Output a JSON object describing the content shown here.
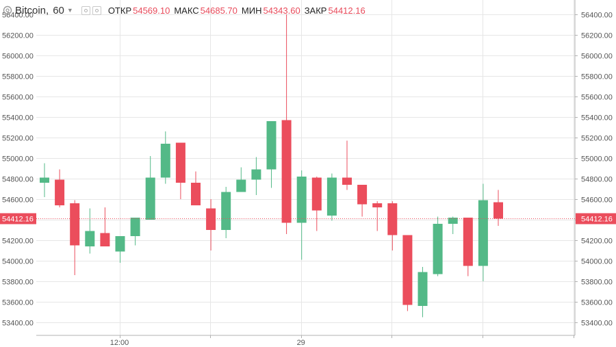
{
  "header": {
    "symbol": "Bitcoin,",
    "timeframe": "60",
    "ohlc": [
      {
        "label": "ОТКР",
        "value": "54569.10"
      },
      {
        "label": "МАКС",
        "value": "54685.70"
      },
      {
        "label": "МИН",
        "value": "54343.60"
      },
      {
        "label": "ЗАКР",
        "value": "54412.16"
      }
    ]
  },
  "colors": {
    "up": "#53b987",
    "down": "#eb4d5c",
    "grid": "#e6e6e6",
    "axis_text": "#555555",
    "value_color": "#e84a5a"
  },
  "chart_data": {
    "type": "candlestick",
    "ylim": [
      53300,
      56500
    ],
    "y_ticks": [
      53400,
      53600,
      53800,
      54000,
      54200,
      54400,
      54600,
      54800,
      55000,
      55200,
      55400,
      55600,
      55800,
      56000,
      56200,
      56400
    ],
    "x_tick_labels": [
      {
        "index": 5,
        "label": "12:00"
      },
      {
        "index": 17,
        "label": "29"
      }
    ],
    "x_gridlines_at_index": [
      5,
      11,
      17,
      23,
      29,
      35
    ],
    "last_price": 54412.16,
    "last_price_label": "54412.16",
    "candles": [
      {
        "o": 54760,
        "h": 54950,
        "l": 54620,
        "c": 54810
      },
      {
        "o": 54790,
        "h": 54890,
        "l": 54520,
        "c": 54540
      },
      {
        "o": 54560,
        "h": 54590,
        "l": 53860,
        "c": 54150
      },
      {
        "o": 54140,
        "h": 54510,
        "l": 54070,
        "c": 54290
      },
      {
        "o": 54270,
        "h": 54520,
        "l": 54140,
        "c": 54140
      },
      {
        "o": 54090,
        "h": 54240,
        "l": 53980,
        "c": 54240
      },
      {
        "o": 54240,
        "h": 54420,
        "l": 54150,
        "c": 54420
      },
      {
        "o": 54400,
        "h": 55020,
        "l": 54400,
        "c": 54810
      },
      {
        "o": 54810,
        "h": 55260,
        "l": 54750,
        "c": 55140
      },
      {
        "o": 55150,
        "h": 55150,
        "l": 54600,
        "c": 54760
      },
      {
        "o": 54760,
        "h": 54870,
        "l": 54540,
        "c": 54540
      },
      {
        "o": 54510,
        "h": 54600,
        "l": 54100,
        "c": 54300
      },
      {
        "o": 54300,
        "h": 54720,
        "l": 54220,
        "c": 54670
      },
      {
        "o": 54670,
        "h": 54910,
        "l": 54670,
        "c": 54790
      },
      {
        "o": 54790,
        "h": 55010,
        "l": 54640,
        "c": 54890
      },
      {
        "o": 54890,
        "h": 55360,
        "l": 54710,
        "c": 55360
      },
      {
        "o": 55370,
        "h": 56400,
        "l": 54260,
        "c": 54370
      },
      {
        "o": 54370,
        "h": 54880,
        "l": 54010,
        "c": 54820
      },
      {
        "o": 54810,
        "h": 54820,
        "l": 54290,
        "c": 54490
      },
      {
        "o": 54440,
        "h": 54850,
        "l": 54390,
        "c": 54810
      },
      {
        "o": 54810,
        "h": 55170,
        "l": 54690,
        "c": 54740
      },
      {
        "o": 54740,
        "h": 54740,
        "l": 54430,
        "c": 54550
      },
      {
        "o": 54560,
        "h": 54580,
        "l": 54290,
        "c": 54520
      },
      {
        "o": 54560,
        "h": 54580,
        "l": 54100,
        "c": 54250
      },
      {
        "o": 54250,
        "h": 54250,
        "l": 53510,
        "c": 53570
      },
      {
        "o": 53560,
        "h": 53940,
        "l": 53450,
        "c": 53890
      },
      {
        "o": 53870,
        "h": 54430,
        "l": 53850,
        "c": 54360
      },
      {
        "o": 54360,
        "h": 54430,
        "l": 54260,
        "c": 54420
      },
      {
        "o": 54420,
        "h": 54420,
        "l": 53850,
        "c": 53950
      },
      {
        "o": 53950,
        "h": 54750,
        "l": 53800,
        "c": 54590
      },
      {
        "o": 54570,
        "h": 54690,
        "l": 54340,
        "c": 54410
      }
    ]
  }
}
